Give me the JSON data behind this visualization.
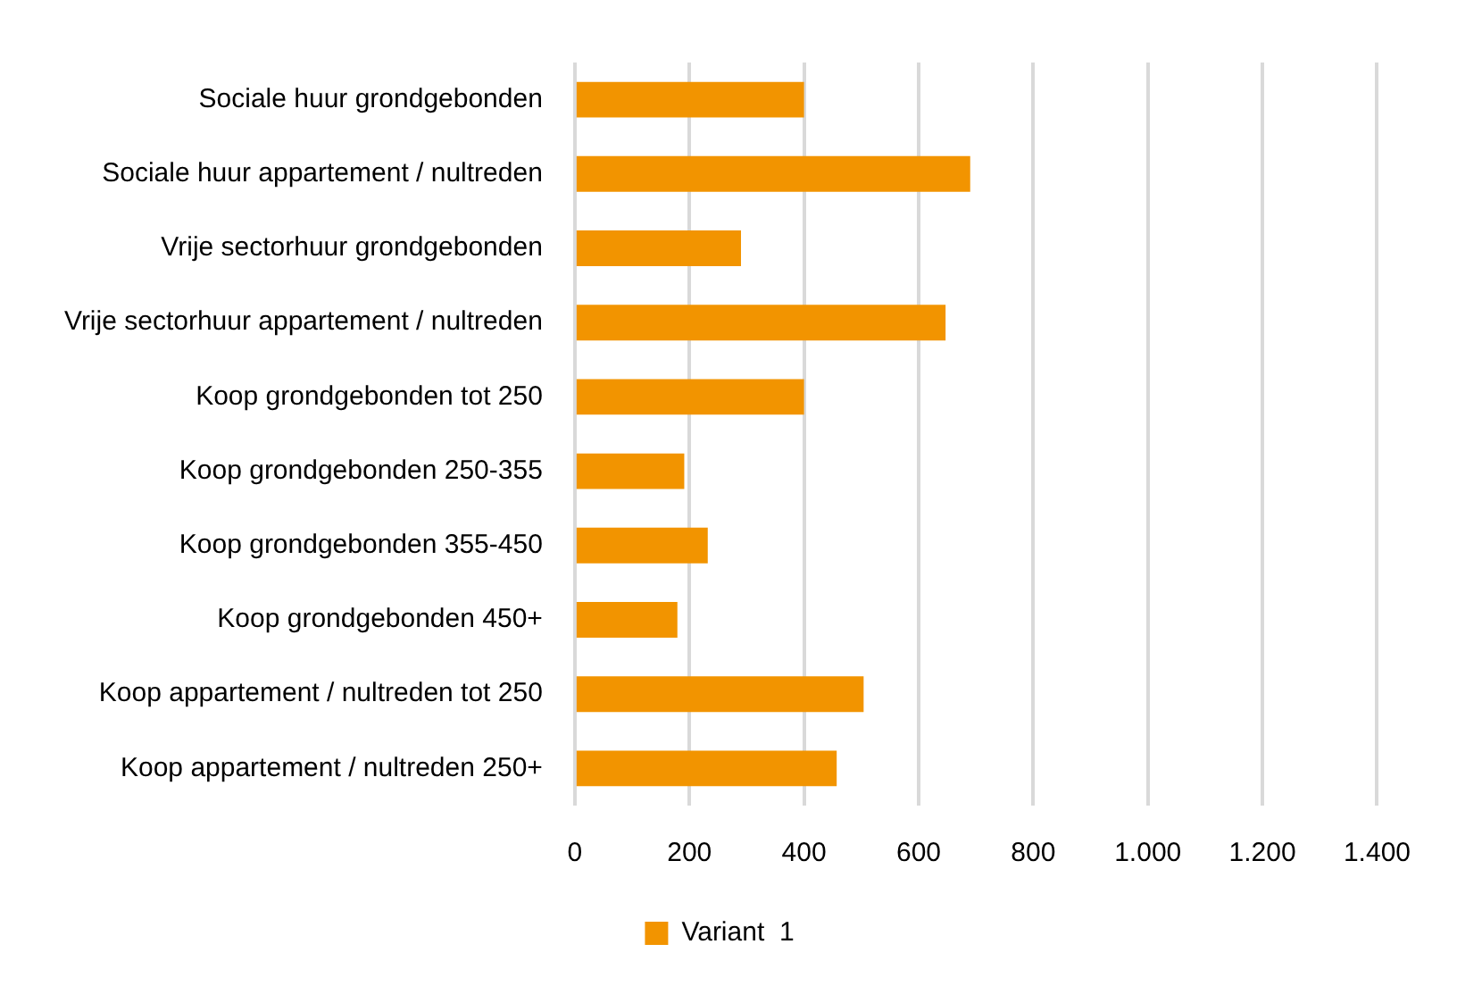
{
  "chart_data": {
    "type": "bar",
    "orientation": "horizontal",
    "categories": [
      "Sociale huur grondgebonden",
      "Sociale huur appartement / nultreden",
      "Vrije sectorhuur grondgebonden",
      "Vrije sectorhuur appartement / nultreden",
      "Koop grondgebonden tot 250",
      "Koop grondgebonden 250-355",
      "Koop grondgebonden 355-450",
      "Koop grondgebonden 450+",
      "Koop appartement / nultreden tot 250",
      "Koop appartement / nultreden 250+"
    ],
    "series": [
      {
        "name": "Variant  1",
        "color": "#f29400",
        "values": [
          400,
          690,
          290,
          647,
          400,
          191,
          232,
          179,
          504,
          457
        ]
      }
    ],
    "xlim": [
      0,
      1400
    ],
    "xticks": [
      0,
      200,
      400,
      600,
      800,
      {
        "value": 1000,
        "label": "1.000"
      },
      {
        "value": 1200,
        "label": "1.200"
      },
      {
        "value": 1400,
        "label": "1.400"
      }
    ],
    "grid": "x",
    "legend": "bottom"
  }
}
